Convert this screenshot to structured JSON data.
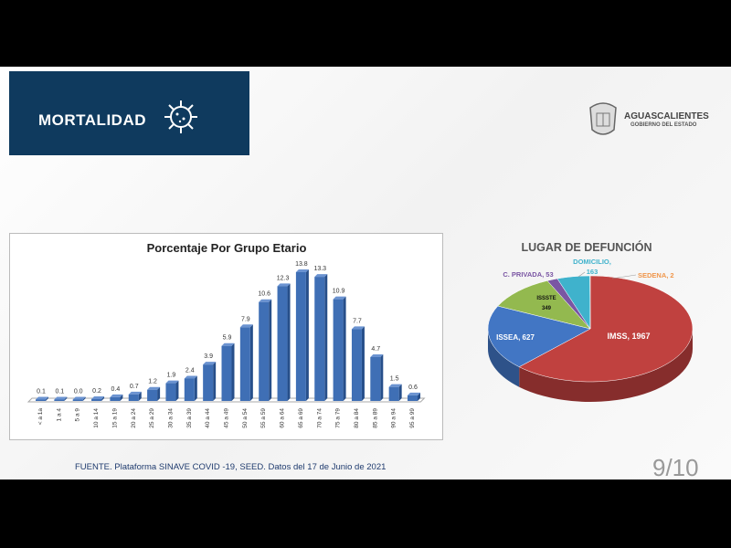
{
  "header": {
    "title": "MORTALIDAD"
  },
  "logo": {
    "name": "AGUASCALIENTES",
    "subtitle": "GOBIERNO DEL ESTADO"
  },
  "chart_data": [
    {
      "type": "bar",
      "title": "Porcentaje Por Grupo Etario",
      "categories": [
        "< a 1a",
        "1 a 4",
        "5 a 9",
        "10 a 14",
        "15 a 19",
        "20 a 24",
        "25 a 29",
        "30 a 34",
        "35 a 39",
        "40 a 44",
        "45 a 49",
        "50 a 54",
        "55 a 59",
        "60 a 64",
        "65 a 69",
        "70 a 74",
        "75 a 79",
        "80 a 84",
        "85 a 89",
        "90 a 94",
        "95 a 99"
      ],
      "values": [
        0.1,
        0.1,
        0.0,
        0.2,
        0.4,
        0.7,
        1.2,
        1.9,
        2.4,
        3.9,
        5.9,
        7.9,
        10.6,
        12.3,
        13.8,
        13.3,
        10.9,
        7.7,
        4.7,
        1.5,
        0.6
      ],
      "color": "#3f6fb5",
      "grid": false
    },
    {
      "type": "pie",
      "title": "LUGAR DE DEFUNCIÓN",
      "slices": [
        {
          "label": "IMSS, 1967",
          "name": "IMSS",
          "value": 1967,
          "color": "#c0413f"
        },
        {
          "label": "ISSEA, 627",
          "name": "ISSEA",
          "value": 627,
          "color": "#4276c4"
        },
        {
          "label": "ISSSTE 349",
          "name": "ISSSTE",
          "value": 349,
          "color": "#93b94f"
        },
        {
          "label": "C. PRIVADA, 53",
          "name": "C. PRIVADA",
          "value": 53,
          "color": "#7a56a3"
        },
        {
          "label": "DOMICILIO, 163",
          "name": "DOMICILIO",
          "value": 163,
          "color": "#3fb2cc"
        },
        {
          "label": "SEDENA, 2",
          "name": "SEDENA",
          "value": 2,
          "color": "#f0964a"
        }
      ]
    }
  ],
  "footer": {
    "source": "FUENTE. Plataforma SINAVE COVID -19, SEED. Datos del 17 de Junio de 2021",
    "page": "9/10"
  }
}
